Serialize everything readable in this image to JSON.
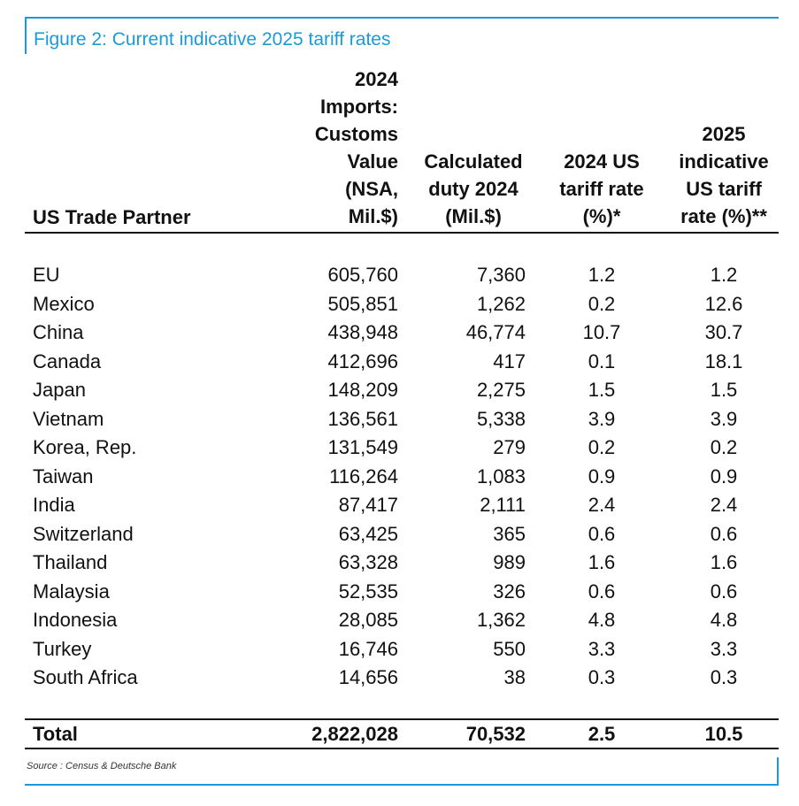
{
  "figure": {
    "title": "Figure 2: Current indicative 2025 tariff rates",
    "accent_color": "#1a9ad6"
  },
  "table": {
    "headers": [
      "US Trade Partner",
      "2024\nImports:\nCustoms\nValue\n(NSA,\nMil.$)",
      "Calculated\nduty 2024\n(Mil.$)",
      "2024 US\ntariff rate\n(%)*",
      "2025\nindicative\nUS tariff\nrate (%)**"
    ],
    "rows": [
      [
        "EU",
        "605,760",
        "7,360",
        "1.2",
        "1.2"
      ],
      [
        "Mexico",
        "505,851",
        "1,262",
        "0.2",
        "12.6"
      ],
      [
        "China",
        "438,948",
        "46,774",
        "10.7",
        "30.7"
      ],
      [
        "Canada",
        "412,696",
        "417",
        "0.1",
        "18.1"
      ],
      [
        "Japan",
        "148,209",
        "2,275",
        "1.5",
        "1.5"
      ],
      [
        "Vietnam",
        "136,561",
        "5,338",
        "3.9",
        "3.9"
      ],
      [
        "Korea, Rep.",
        "131,549",
        "279",
        "0.2",
        "0.2"
      ],
      [
        "Taiwan",
        "116,264",
        "1,083",
        "0.9",
        "0.9"
      ],
      [
        "India",
        "87,417",
        "2,111",
        "2.4",
        "2.4"
      ],
      [
        "Switzerland",
        "63,425",
        "365",
        "0.6",
        "0.6"
      ],
      [
        "Thailand",
        "63,328",
        "989",
        "1.6",
        "1.6"
      ],
      [
        "Malaysia",
        "52,535",
        "326",
        "0.6",
        "0.6"
      ],
      [
        "Indonesia",
        "28,085",
        "1,362",
        "4.8",
        "4.8"
      ],
      [
        "Turkey",
        "16,746",
        "550",
        "3.3",
        "3.3"
      ],
      [
        "South Africa",
        "14,656",
        "38",
        "0.3",
        "0.3"
      ]
    ],
    "total": [
      "Total",
      "2,822,028",
      "70,532",
      "2.5",
      "10.5"
    ]
  },
  "source": "Source : Census & Deutsche Bank"
}
